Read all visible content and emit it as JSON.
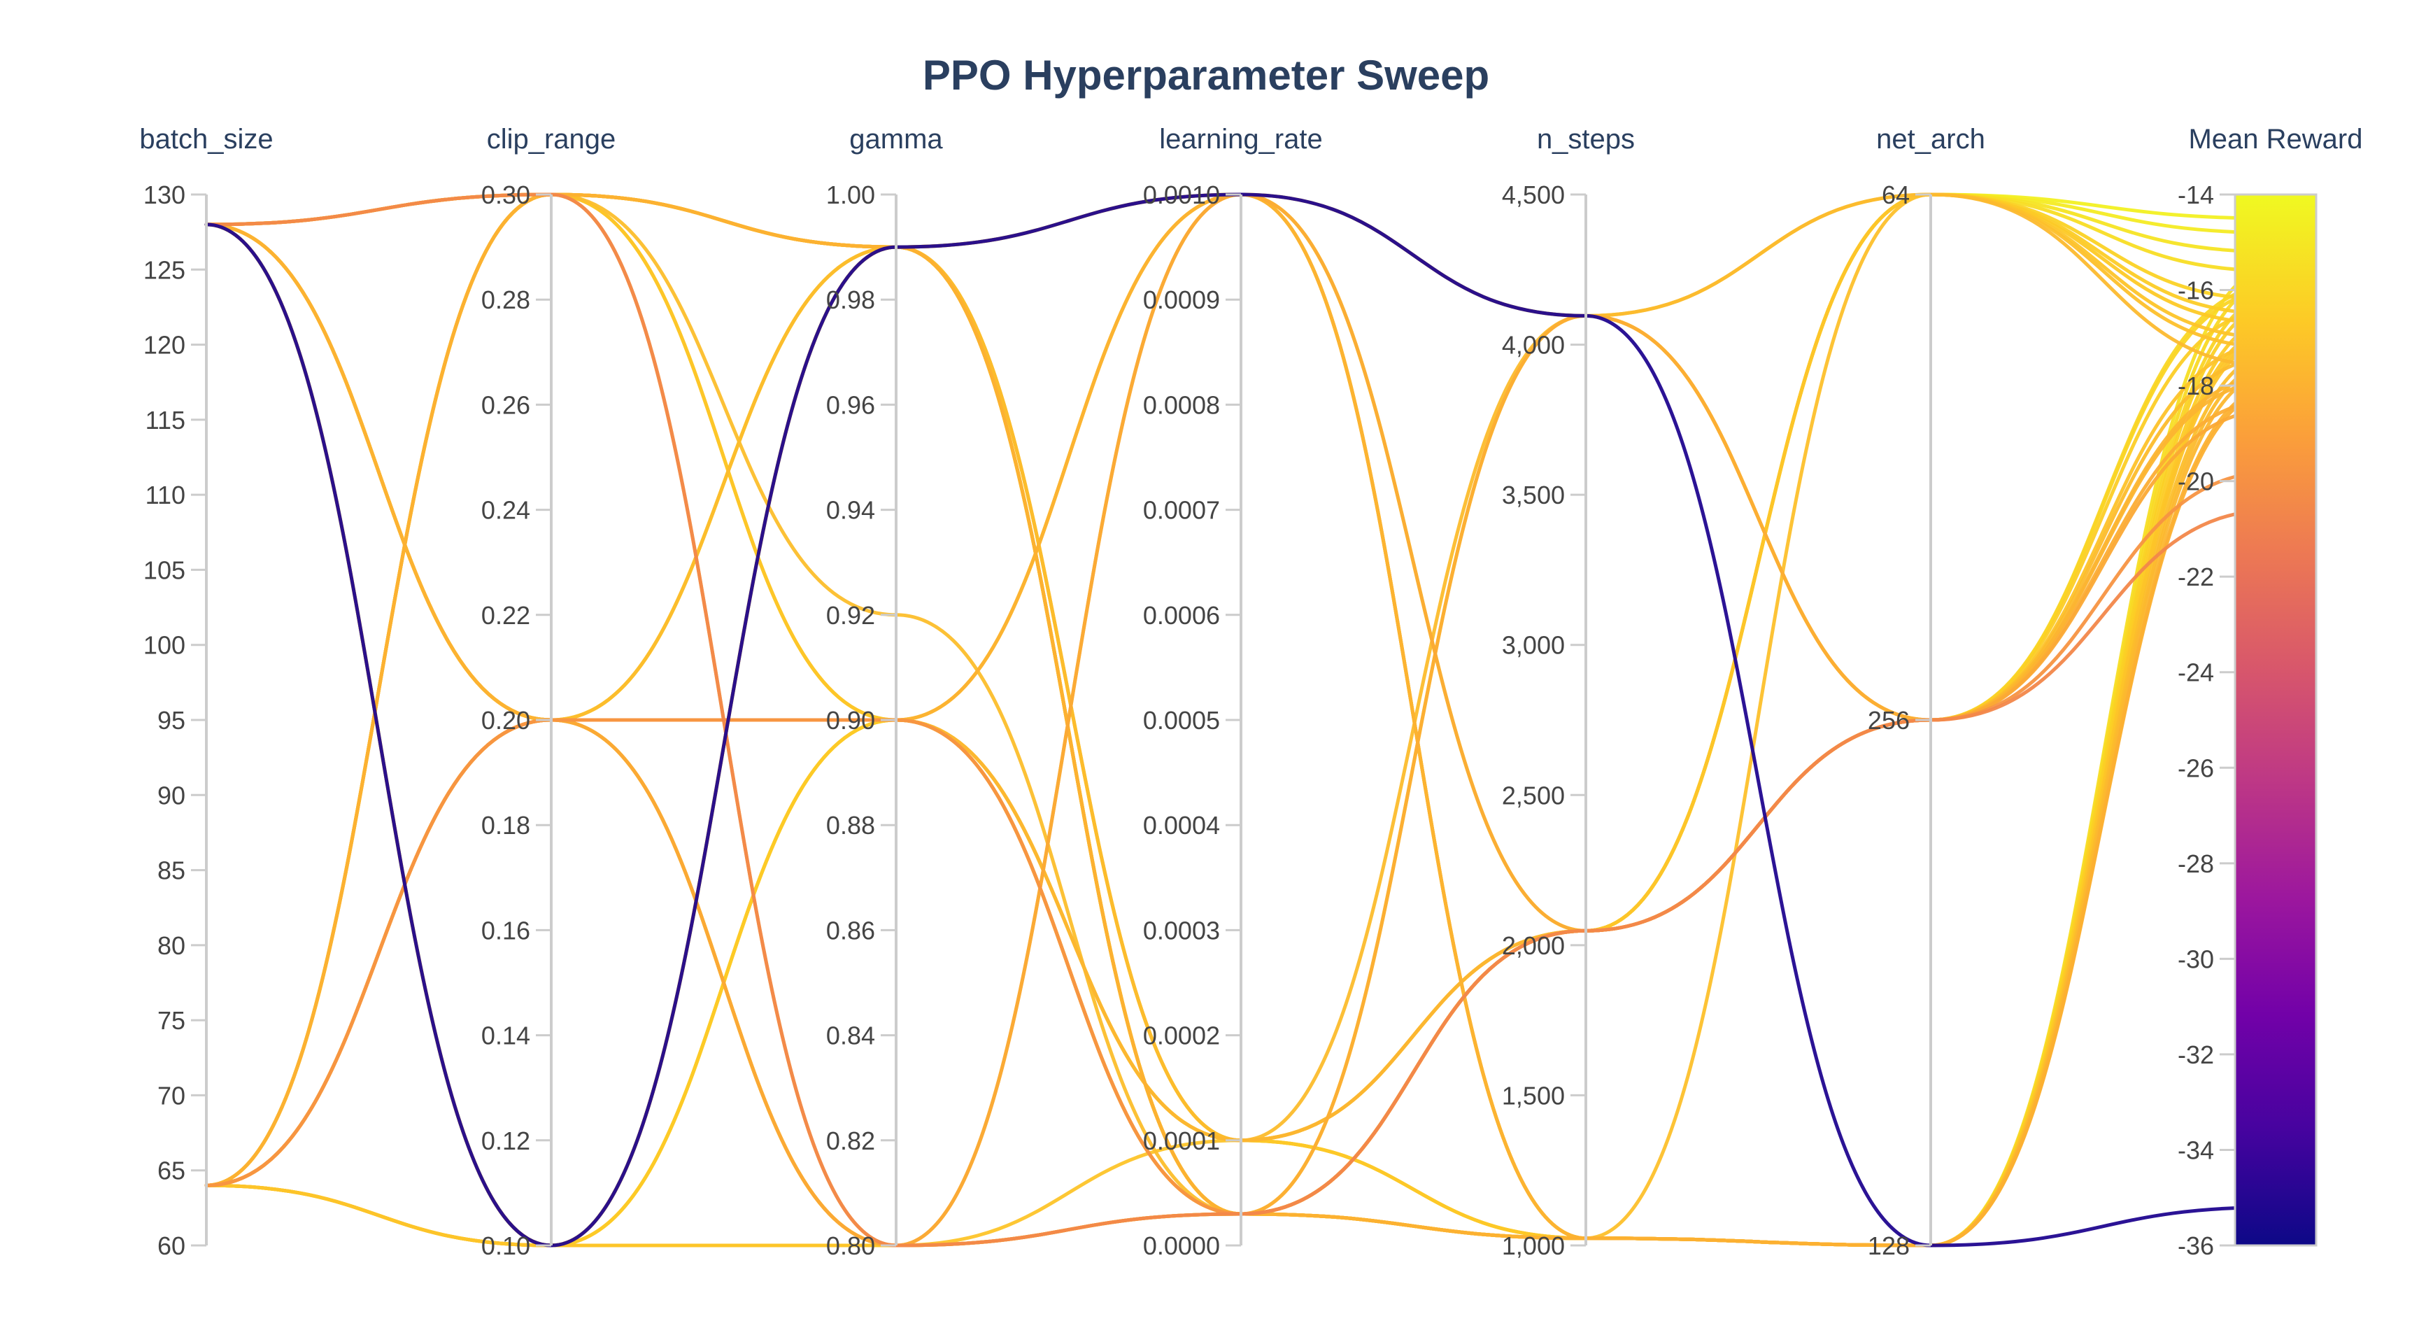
{
  "chart_data": {
    "type": "parallel_coordinates",
    "title": "PPO Hyperparameter Sweep",
    "colorscale": "plasma",
    "color_by": "Mean Reward",
    "axes": [
      {
        "label": "batch_size",
        "range": [
          60,
          130
        ],
        "ticks": [
          "60",
          "65",
          "70",
          "75",
          "80",
          "85",
          "90",
          "95",
          "100",
          "105",
          "110",
          "115",
          "120",
          "125",
          "130"
        ],
        "tick_values": [
          60,
          65,
          70,
          75,
          80,
          85,
          90,
          95,
          100,
          105,
          110,
          115,
          120,
          125,
          130
        ]
      },
      {
        "label": "clip_range",
        "range": [
          0.1,
          0.3
        ],
        "ticks": [
          "0.10",
          "0.12",
          "0.14",
          "0.16",
          "0.18",
          "0.20",
          "0.22",
          "0.24",
          "0.26",
          "0.28",
          "0.30"
        ],
        "tick_values": [
          0.1,
          0.12,
          0.14,
          0.16,
          0.18,
          0.2,
          0.22,
          0.24,
          0.26,
          0.28,
          0.3
        ]
      },
      {
        "label": "gamma",
        "range": [
          0.8,
          1.0
        ],
        "ticks": [
          "0.80",
          "0.82",
          "0.84",
          "0.86",
          "0.88",
          "0.90",
          "0.92",
          "0.94",
          "0.96",
          "0.98",
          "1.00"
        ],
        "tick_values": [
          0.8,
          0.82,
          0.84,
          0.86,
          0.88,
          0.9,
          0.92,
          0.94,
          0.96,
          0.98,
          1.0
        ]
      },
      {
        "label": "learning_rate",
        "range": [
          0,
          0.001
        ],
        "ticks": [
          "0.0000",
          "0.0001",
          "0.0002",
          "0.0003",
          "0.0004",
          "0.0005",
          "0.0006",
          "0.0007",
          "0.0008",
          "0.0009",
          "0.0010"
        ],
        "tick_values": [
          0,
          0.0001,
          0.0002,
          0.0003,
          0.0004,
          0.0005,
          0.0006,
          0.0007,
          0.0008,
          0.0009,
          0.001
        ]
      },
      {
        "label": "n_steps",
        "range": [
          1000,
          4500
        ],
        "ticks": [
          "1,000",
          "1,500",
          "2,000",
          "2,500",
          "3,000",
          "3,500",
          "4,000",
          "4,500"
        ],
        "tick_values": [
          1000,
          1500,
          2000,
          2500,
          3000,
          3500,
          4000,
          4500
        ]
      },
      {
        "label": "net_arch",
        "categorical": true,
        "categories": [
          "128",
          "256",
          "64"
        ]
      },
      {
        "label": "Mean Reward",
        "range": [
          -36,
          -14
        ],
        "ticks": [
          "-36",
          "-34",
          "-32",
          "-30",
          "-28",
          "-26",
          "-24",
          "-22",
          "-20",
          "-18",
          "-16",
          "-14"
        ],
        "tick_values": [
          -36,
          -34,
          -32,
          -30,
          -28,
          -26,
          -24,
          -22,
          -20,
          -18,
          -16,
          -14
        ]
      }
    ],
    "runs": [
      [
        128,
        0.1,
        0.99,
        0.001,
        4096,
        "128",
        -35.2
      ],
      [
        128,
        0.3,
        0.99,
        3e-05,
        1024,
        "128",
        -17.5
      ],
      [
        128,
        0.2,
        0.9,
        0.0001,
        2048,
        "256",
        -17.8
      ],
      [
        128,
        0.2,
        0.8,
        3e-05,
        1024,
        "64",
        -17.2
      ],
      [
        64,
        0.3,
        0.99,
        0.001,
        4096,
        "64",
        -17.6
      ],
      [
        64,
        0.2,
        0.9,
        3e-05,
        2048,
        "256",
        -19.8
      ],
      [
        64,
        0.1,
        0.99,
        0.0001,
        1024,
        "128",
        -16.8
      ],
      [
        64,
        0.2,
        0.8,
        0.001,
        2048,
        "256",
        -18.5
      ],
      [
        128,
        0.3,
        0.8,
        3e-05,
        2048,
        "256",
        -20.6
      ],
      [
        64,
        0.3,
        0.99,
        3e-05,
        1024,
        "128",
        -18.1
      ],
      [
        128,
        0.2,
        0.99,
        0.0001,
        4096,
        "256",
        -17.4
      ],
      [
        64,
        0.1,
        0.9,
        3e-05,
        2048,
        "64",
        -16.7
      ],
      [
        128,
        0.3,
        0.9,
        0.001,
        1024,
        "128",
        -16.9
      ],
      [
        64,
        0.2,
        0.99,
        3e-05,
        2048,
        "64",
        -16.5
      ],
      [
        128,
        0.1,
        0.8,
        0.0001,
        2048,
        "64",
        -17.0
      ],
      [
        64,
        0.3,
        0.92,
        3e-05,
        1024,
        "128",
        -17.3
      ],
      [
        128,
        0.2,
        0.9,
        0.001,
        1024,
        "128",
        -18.0
      ],
      [
        64,
        0.1,
        0.99,
        3e-05,
        4096,
        "64",
        -16.2
      ],
      [
        128,
        0.3,
        0.99,
        0.0001,
        2048,
        "256",
        -17.1
      ],
      [
        64,
        0.2,
        0.8,
        3e-05,
        2048,
        "256",
        -17.9
      ],
      [
        128,
        0.1,
        0.9,
        0.001,
        4096,
        "256",
        -16.4
      ],
      [
        64,
        0.3,
        0.99,
        3e-05,
        1024,
        "128",
        -15.8
      ],
      [
        128,
        0.2,
        0.99,
        3e-05,
        2048,
        "64",
        -15.6
      ],
      [
        64,
        0.1,
        0.9,
        0.0001,
        1024,
        "128",
        -16.1
      ],
      [
        128,
        0.3,
        0.8,
        0.001,
        1024,
        "128",
        -17.7
      ],
      [
        64,
        0.2,
        0.9,
        3e-05,
        4096,
        "256",
        -18.3
      ],
      [
        128,
        0.1,
        0.99,
        3e-05,
        2048,
        "64",
        -15.2
      ],
      [
        64,
        0.3,
        0.9,
        0.0001,
        1024,
        "128",
        -16.6
      ],
      [
        128,
        0.2,
        0.8,
        3e-05,
        2048,
        "256",
        -15.9
      ],
      [
        64,
        0.1,
        0.99,
        0.001,
        1024,
        "128",
        -17.0
      ],
      [
        128,
        0.3,
        0.99,
        3e-05,
        2048,
        "64",
        -14.8
      ],
      [
        64,
        0.2,
        0.9,
        0.0001,
        2048,
        "256",
        -16.0
      ],
      [
        128,
        0.1,
        0.8,
        3e-05,
        1024,
        "128",
        -16.3
      ],
      [
        64,
        0.3,
        0.99,
        0.001,
        2048,
        "64",
        -14.5
      ],
      [
        128,
        0.2,
        0.9,
        3e-05,
        1024,
        "128",
        -15.5
      ]
    ]
  }
}
